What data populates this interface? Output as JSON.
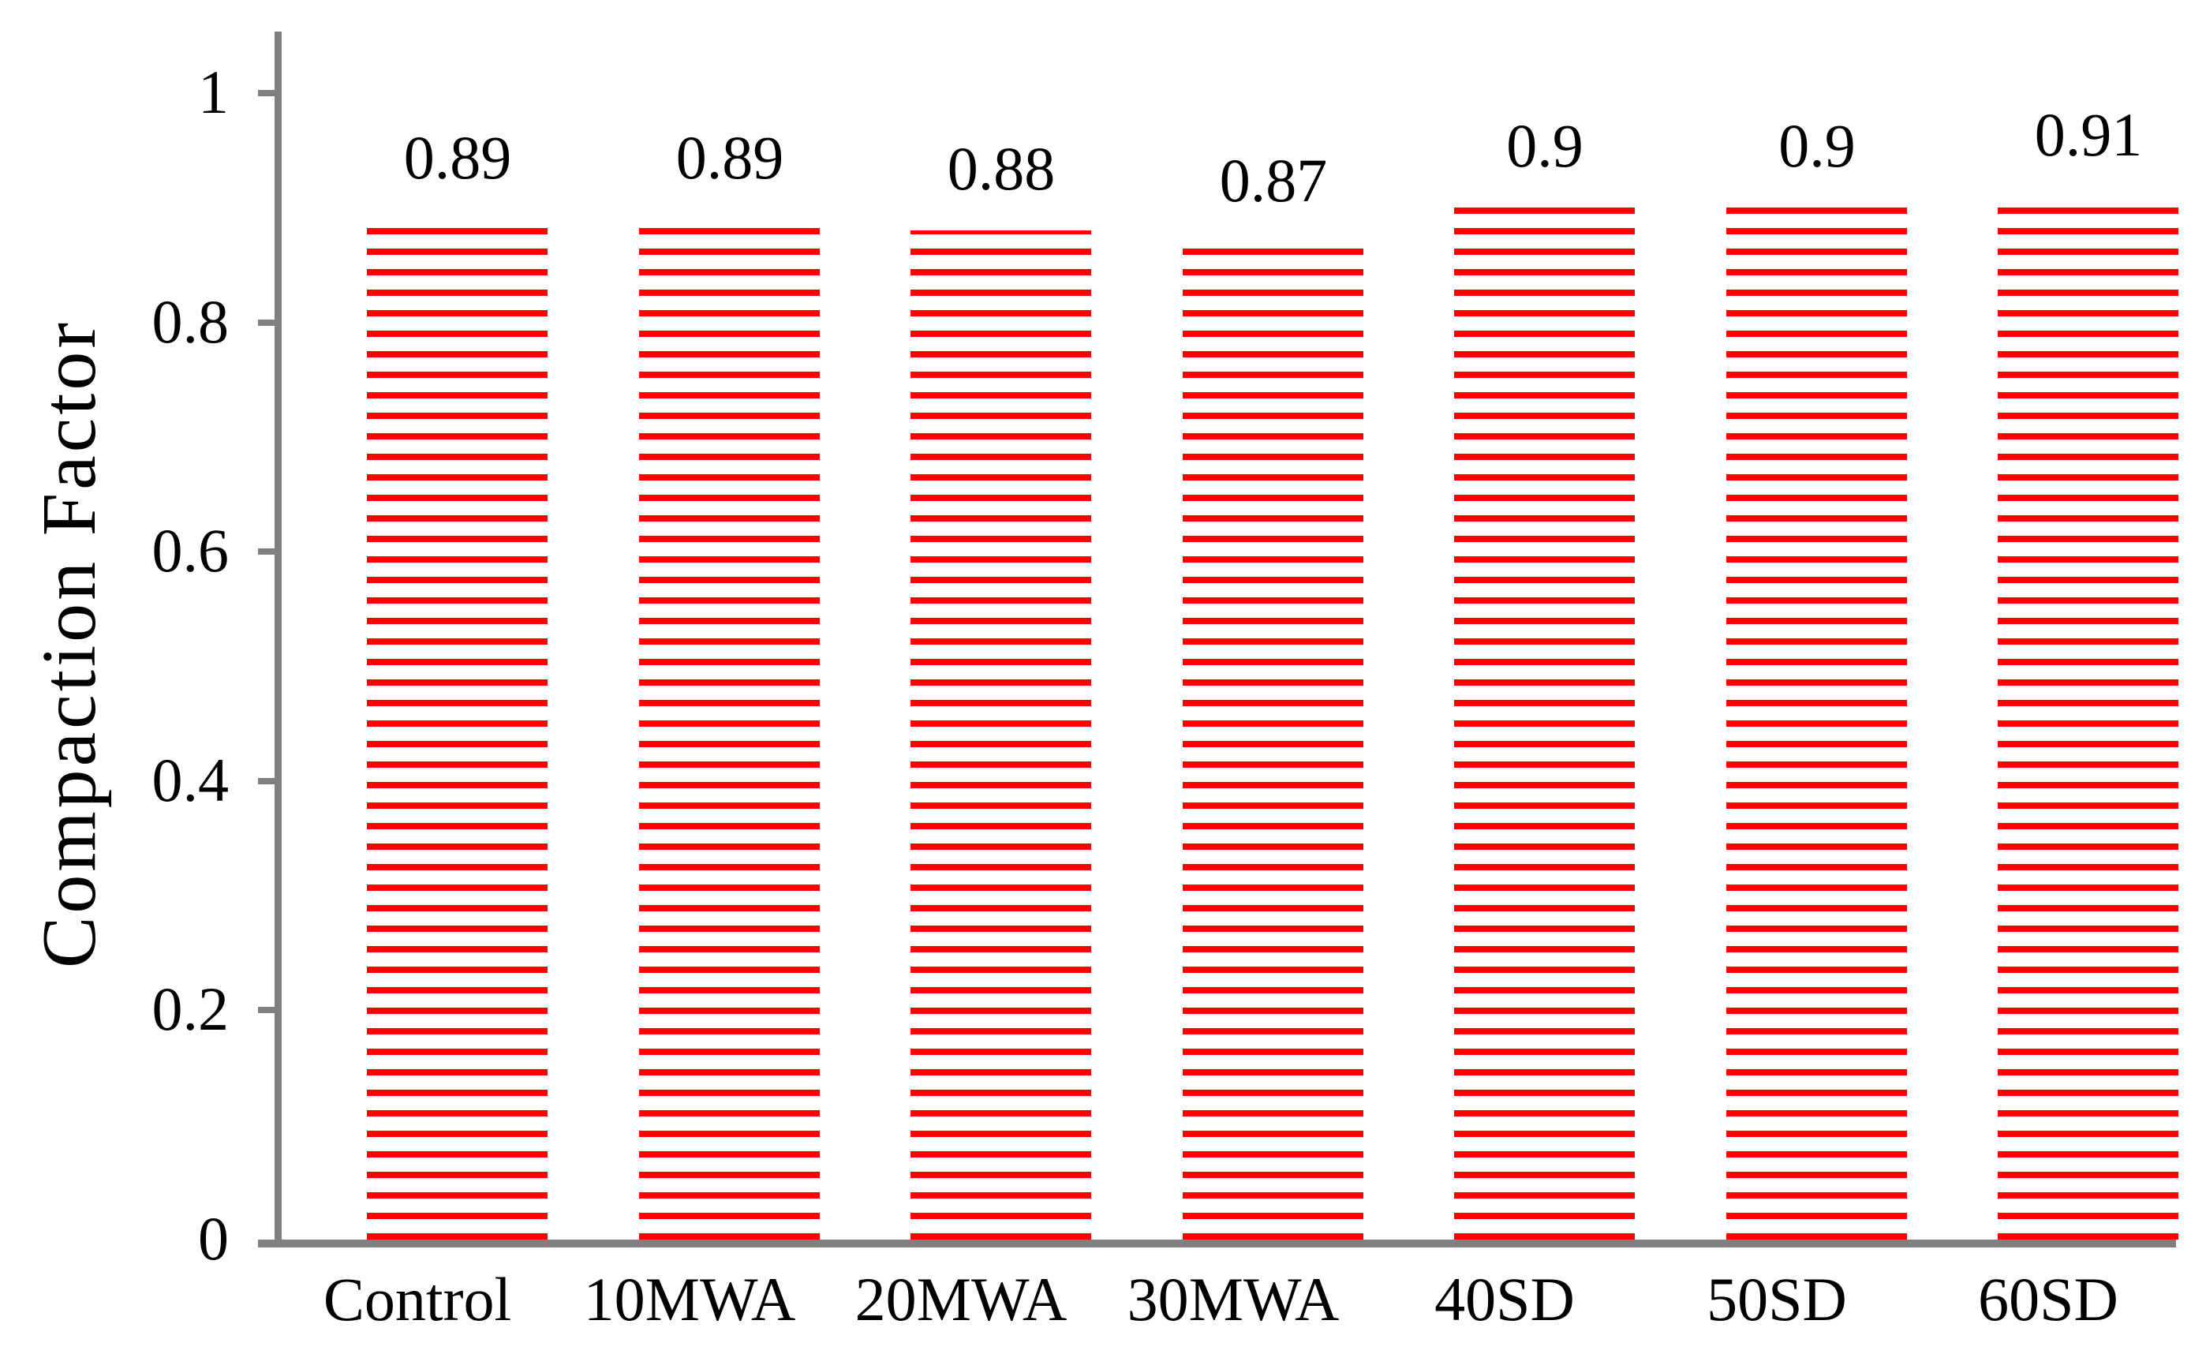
{
  "chart_data": {
    "type": "bar",
    "title": "",
    "xlabel": "",
    "ylabel": "Compaction Factor",
    "categories": [
      "Control",
      "10MWA",
      "20MWA",
      "30MWA",
      "40SD",
      "50SD",
      "60SD"
    ],
    "values": [
      0.89,
      0.89,
      0.88,
      0.87,
      0.9,
      0.9,
      0.91
    ],
    "data_labels": [
      "0.89",
      "0.89",
      "0.88",
      "0.87",
      "0.9",
      "0.9",
      "0.91"
    ],
    "yticks": [
      0,
      0.2,
      0.4,
      0.6,
      0.8,
      1
    ],
    "ytick_labels": [
      "0",
      "0.2",
      "0.4",
      "0.6",
      "0.8",
      "1"
    ],
    "ylim": [
      0,
      1
    ],
    "grid": false,
    "legend": false,
    "bar_pattern": "horizontal-stripes",
    "colors": {
      "bar": "#FF0000",
      "axis": "#808080",
      "text": "#000000",
      "background": "#FFFFFF"
    }
  }
}
